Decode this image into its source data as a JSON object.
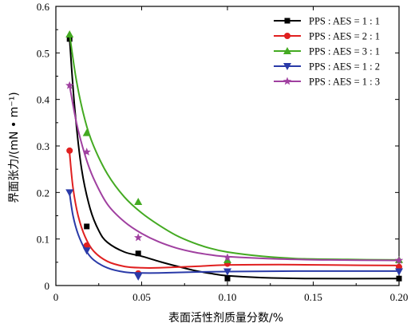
{
  "chart_data": {
    "type": "scatter",
    "xlabel": "表面活性剂质量分数/%",
    "ylabel": "界面张力/(mN • m⁻¹)",
    "xlim": [
      0,
      0.2
    ],
    "ylim": [
      0,
      0.6
    ],
    "x_ticks": [
      "0",
      "0.05",
      "0.10",
      "0.15",
      "0.20"
    ],
    "y_ticks": [
      "0",
      "0.1",
      "0.2",
      "0.3",
      "0.4",
      "0.5",
      "0.6"
    ],
    "legend_position": "top-right",
    "grid": false,
    "fit_curves": true,
    "series": [
      {
        "name": "PPS : AES = 1 : 1",
        "color": "#000000",
        "marker": "square",
        "x": [
          0.008,
          0.018,
          0.048,
          0.1,
          0.2
        ],
        "y": [
          0.53,
          0.127,
          0.069,
          0.015,
          0.015
        ],
        "curve": [
          [
            0.008,
            0.53
          ],
          [
            0.011,
            0.38
          ],
          [
            0.015,
            0.25
          ],
          [
            0.02,
            0.165
          ],
          [
            0.025,
            0.118
          ],
          [
            0.03,
            0.093
          ],
          [
            0.04,
            0.072
          ],
          [
            0.05,
            0.063
          ],
          [
            0.06,
            0.052
          ],
          [
            0.07,
            0.042
          ],
          [
            0.08,
            0.033
          ],
          [
            0.09,
            0.026
          ],
          [
            0.1,
            0.021
          ],
          [
            0.12,
            0.017
          ],
          [
            0.15,
            0.015
          ],
          [
            0.2,
            0.015
          ]
        ]
      },
      {
        "name": "PPS : AES = 2 : 1",
        "color": "#e02020",
        "marker": "circle",
        "x": [
          0.008,
          0.018,
          0.048,
          0.1,
          0.2
        ],
        "y": [
          0.29,
          0.086,
          0.026,
          0.047,
          0.04
        ],
        "curve": [
          [
            0.008,
            0.285
          ],
          [
            0.01,
            0.21
          ],
          [
            0.013,
            0.15
          ],
          [
            0.017,
            0.105
          ],
          [
            0.022,
            0.074
          ],
          [
            0.03,
            0.052
          ],
          [
            0.04,
            0.041
          ],
          [
            0.05,
            0.038
          ],
          [
            0.06,
            0.038
          ],
          [
            0.08,
            0.041
          ],
          [
            0.1,
            0.044
          ],
          [
            0.13,
            0.045
          ],
          [
            0.16,
            0.044
          ],
          [
            0.2,
            0.043
          ]
        ]
      },
      {
        "name": "PPS : AES = 3 : 1",
        "color": "#44aa22",
        "marker": "triangle",
        "x": [
          0.008,
          0.018,
          0.048,
          0.1,
          0.2
        ],
        "y": [
          0.54,
          0.328,
          0.18,
          0.055,
          0.055
        ],
        "curve": [
          [
            0.008,
            0.54
          ],
          [
            0.012,
            0.44
          ],
          [
            0.017,
            0.355
          ],
          [
            0.022,
            0.3
          ],
          [
            0.03,
            0.24
          ],
          [
            0.04,
            0.19
          ],
          [
            0.05,
            0.156
          ],
          [
            0.06,
            0.13
          ],
          [
            0.07,
            0.108
          ],
          [
            0.08,
            0.092
          ],
          [
            0.09,
            0.08
          ],
          [
            0.1,
            0.072
          ],
          [
            0.12,
            0.063
          ],
          [
            0.14,
            0.058
          ],
          [
            0.17,
            0.056
          ],
          [
            0.2,
            0.055
          ]
        ]
      },
      {
        "name": "PPS : AES = 1 : 2",
        "color": "#2a3aa8",
        "marker": "triangle-down",
        "x": [
          0.008,
          0.018,
          0.048,
          0.1,
          0.2
        ],
        "y": [
          0.2,
          0.075,
          0.019,
          0.03,
          0.03
        ],
        "curve": [
          [
            0.008,
            0.198
          ],
          [
            0.01,
            0.15
          ],
          [
            0.013,
            0.11
          ],
          [
            0.017,
            0.078
          ],
          [
            0.022,
            0.055
          ],
          [
            0.03,
            0.038
          ],
          [
            0.04,
            0.029
          ],
          [
            0.05,
            0.027
          ],
          [
            0.06,
            0.027
          ],
          [
            0.08,
            0.029
          ],
          [
            0.1,
            0.03
          ],
          [
            0.14,
            0.031
          ],
          [
            0.2,
            0.031
          ]
        ]
      },
      {
        "name": "PPS : AES = 1 : 3",
        "color": "#a040a0",
        "marker": "star",
        "x": [
          0.008,
          0.018,
          0.048,
          0.1,
          0.2
        ],
        "y": [
          0.43,
          0.287,
          0.103,
          0.06,
          0.054
        ],
        "curve": [
          [
            0.008,
            0.43
          ],
          [
            0.012,
            0.35
          ],
          [
            0.017,
            0.28
          ],
          [
            0.022,
            0.23
          ],
          [
            0.03,
            0.175
          ],
          [
            0.04,
            0.137
          ],
          [
            0.05,
            0.112
          ],
          [
            0.06,
            0.094
          ],
          [
            0.07,
            0.081
          ],
          [
            0.08,
            0.072
          ],
          [
            0.09,
            0.066
          ],
          [
            0.1,
            0.062
          ],
          [
            0.13,
            0.057
          ],
          [
            0.16,
            0.055
          ],
          [
            0.2,
            0.054
          ]
        ]
      }
    ]
  }
}
